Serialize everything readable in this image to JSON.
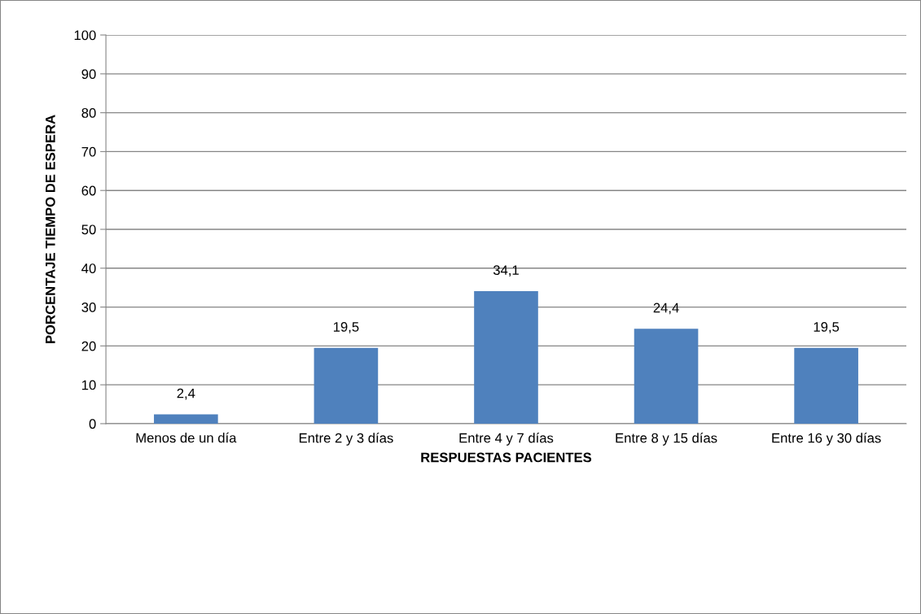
{
  "chart_data": {
    "type": "bar",
    "xlabel": "RESPUESTAS PACIENTES",
    "ylabel": "PORCENTAJE TIEMPO DE ESPERA",
    "categories": [
      "Menos de un día",
      "Entre 2 y 3 días",
      "Entre 4 y 7 días",
      "Entre 8 y 15 días",
      "Entre 16 y 30 días"
    ],
    "values": [
      2.4,
      19.5,
      34.1,
      24.4,
      19.5
    ],
    "value_labels": [
      "2,4",
      "19,5",
      "34,1",
      "24,4",
      "19,5"
    ],
    "color": "#4f81bd",
    "ylim": [
      0,
      100
    ],
    "yticks": [
      0,
      10,
      20,
      30,
      40,
      50,
      60,
      70,
      80,
      90,
      100
    ],
    "grid": "y",
    "legend": false
  }
}
